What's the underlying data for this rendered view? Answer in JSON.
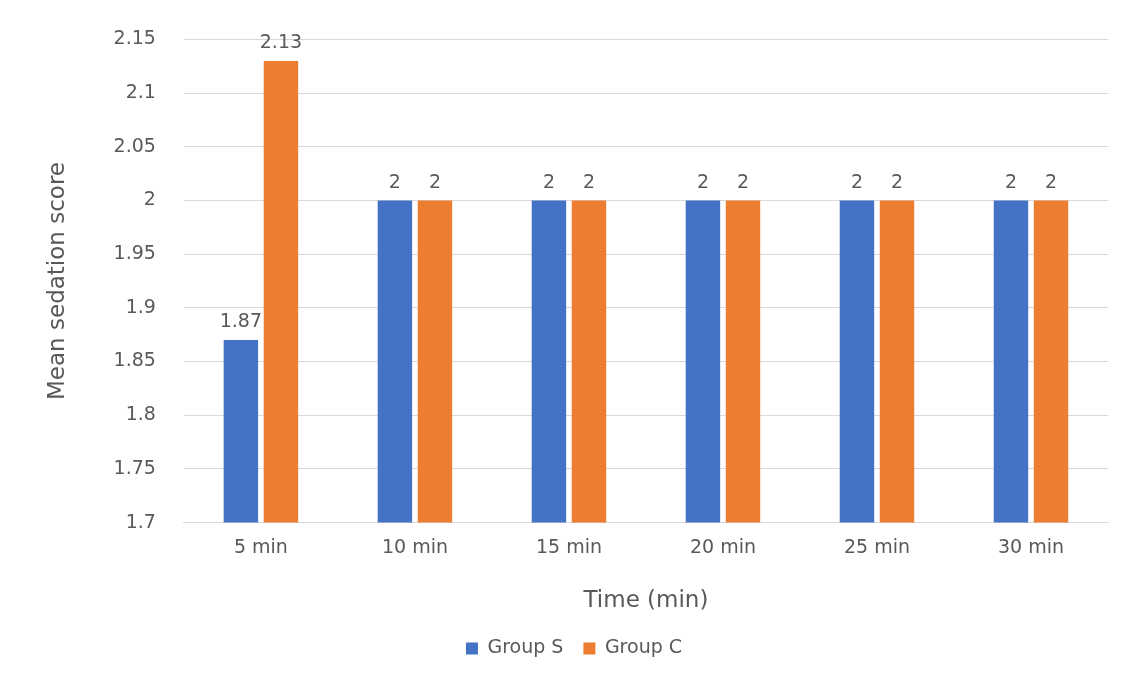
{
  "chart_data": {
    "type": "bar",
    "xlabel": "Time (min)",
    "ylabel": "Mean sedation score",
    "categories": [
      "5 min",
      "10 min",
      "15 min",
      "20 min",
      "25 min",
      "30 min"
    ],
    "series": [
      {
        "name": "Group S",
        "color": "#4472c4",
        "values": [
          1.87,
          2,
          2,
          2,
          2,
          2
        ]
      },
      {
        "name": "Group C",
        "color": "#ed7d31",
        "values": [
          2.13,
          2,
          2,
          2,
          2,
          2
        ]
      }
    ],
    "ylim": [
      1.7,
      2.15
    ],
    "yticks": [
      1.7,
      1.75,
      1.8,
      1.85,
      1.9,
      1.95,
      2,
      2.05,
      2.1,
      2.15
    ],
    "grid": "y",
    "legend": "bottom",
    "data_labels": true
  }
}
